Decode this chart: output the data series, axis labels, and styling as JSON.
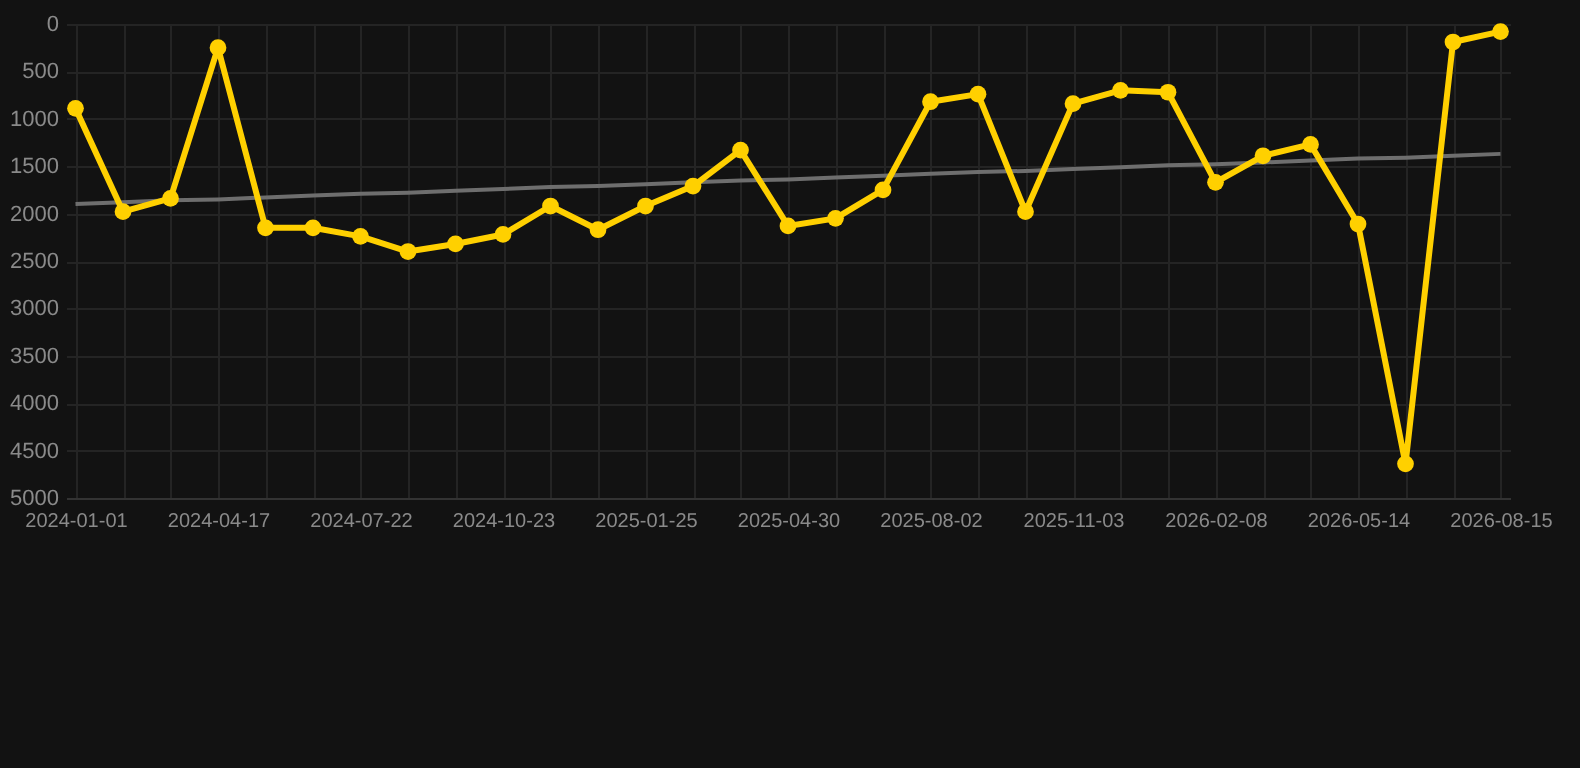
{
  "chart_data": {
    "type": "line",
    "categories": [
      "2024-01-01",
      null,
      null,
      "2024-04-17",
      null,
      null,
      "2024-07-22",
      null,
      null,
      "2024-10-23",
      null,
      null,
      "2025-01-25",
      null,
      null,
      "2025-04-30",
      null,
      null,
      "2025-08-02",
      null,
      null,
      "2025-11-03",
      null,
      null,
      "2026-02-08",
      null,
      null,
      "2026-05-14",
      null,
      null,
      "2026-08-15"
    ],
    "series": [
      {
        "color": "#ffd000",
        "marker": "circle",
        "values": [
          890,
          1980,
          1840,
          250,
          2150,
          2150,
          2240,
          2400,
          2320,
          2220,
          1920,
          2170,
          1920,
          1710,
          1330,
          2130,
          2050,
          1750,
          820,
          740,
          1980,
          840,
          700,
          720,
          1670,
          1390,
          1270,
          2110,
          4640,
          190,
          80
        ]
      },
      {
        "type": "line",
        "color": "#6e6e6e",
        "marker": "none",
        "values": [
          1900,
          1880,
          1860,
          1850,
          1830,
          1810,
          1790,
          1780,
          1760,
          1740,
          1720,
          1710,
          1690,
          1670,
          1650,
          1640,
          1620,
          1600,
          1580,
          1560,
          1550,
          1530,
          1510,
          1490,
          1480,
          1460,
          1440,
          1420,
          1410,
          1390,
          1370
        ]
      }
    ],
    "ylim": [
      5000,
      0
    ],
    "yticks": [
      0,
      500,
      1000,
      1500,
      2000,
      2500,
      3000,
      3500,
      4000,
      4500,
      5000
    ],
    "grid": true
  }
}
